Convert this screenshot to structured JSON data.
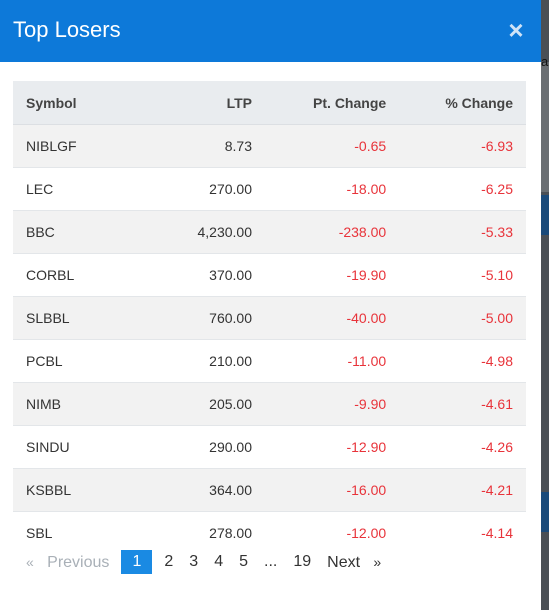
{
  "modal": {
    "title": "Top Losers",
    "close_glyph": "×"
  },
  "backdrop": {
    "peek_text": "a"
  },
  "table": {
    "headers": {
      "symbol": "Symbol",
      "ltp": "LTP",
      "pt_change": "Pt. Change",
      "pct_change": "% Change"
    },
    "rows": [
      {
        "symbol": "NIBLGF",
        "ltp": "8.73",
        "pt_change": "-0.65",
        "pct_change": "-6.93"
      },
      {
        "symbol": "LEC",
        "ltp": "270.00",
        "pt_change": "-18.00",
        "pct_change": "-6.25"
      },
      {
        "symbol": "BBC",
        "ltp": "4,230.00",
        "pt_change": "-238.00",
        "pct_change": "-5.33"
      },
      {
        "symbol": "CORBL",
        "ltp": "370.00",
        "pt_change": "-19.90",
        "pct_change": "-5.10"
      },
      {
        "symbol": "SLBBL",
        "ltp": "760.00",
        "pt_change": "-40.00",
        "pct_change": "-5.00"
      },
      {
        "symbol": "PCBL",
        "ltp": "210.00",
        "pt_change": "-11.00",
        "pct_change": "-4.98"
      },
      {
        "symbol": "NIMB",
        "ltp": "205.00",
        "pt_change": "-9.90",
        "pct_change": "-4.61"
      },
      {
        "symbol": "SINDU",
        "ltp": "290.00",
        "pt_change": "-12.90",
        "pct_change": "-4.26"
      },
      {
        "symbol": "KSBBL",
        "ltp": "364.00",
        "pt_change": "-16.00",
        "pct_change": "-4.21"
      },
      {
        "symbol": "SBL",
        "ltp": "278.00",
        "pt_change": "-12.00",
        "pct_change": "-4.14"
      }
    ]
  },
  "pagination": {
    "prev_arrow": "«",
    "prev_label": "Previous",
    "pages": [
      "1",
      "2",
      "3",
      "4",
      "5"
    ],
    "ellipsis": "...",
    "last_page": "19",
    "next_label": "Next",
    "next_arrow": "»",
    "current": "1"
  },
  "colors": {
    "header_bg": "#0d79d9",
    "negative": "#e8333a",
    "active_page": "#1a8ae3"
  }
}
